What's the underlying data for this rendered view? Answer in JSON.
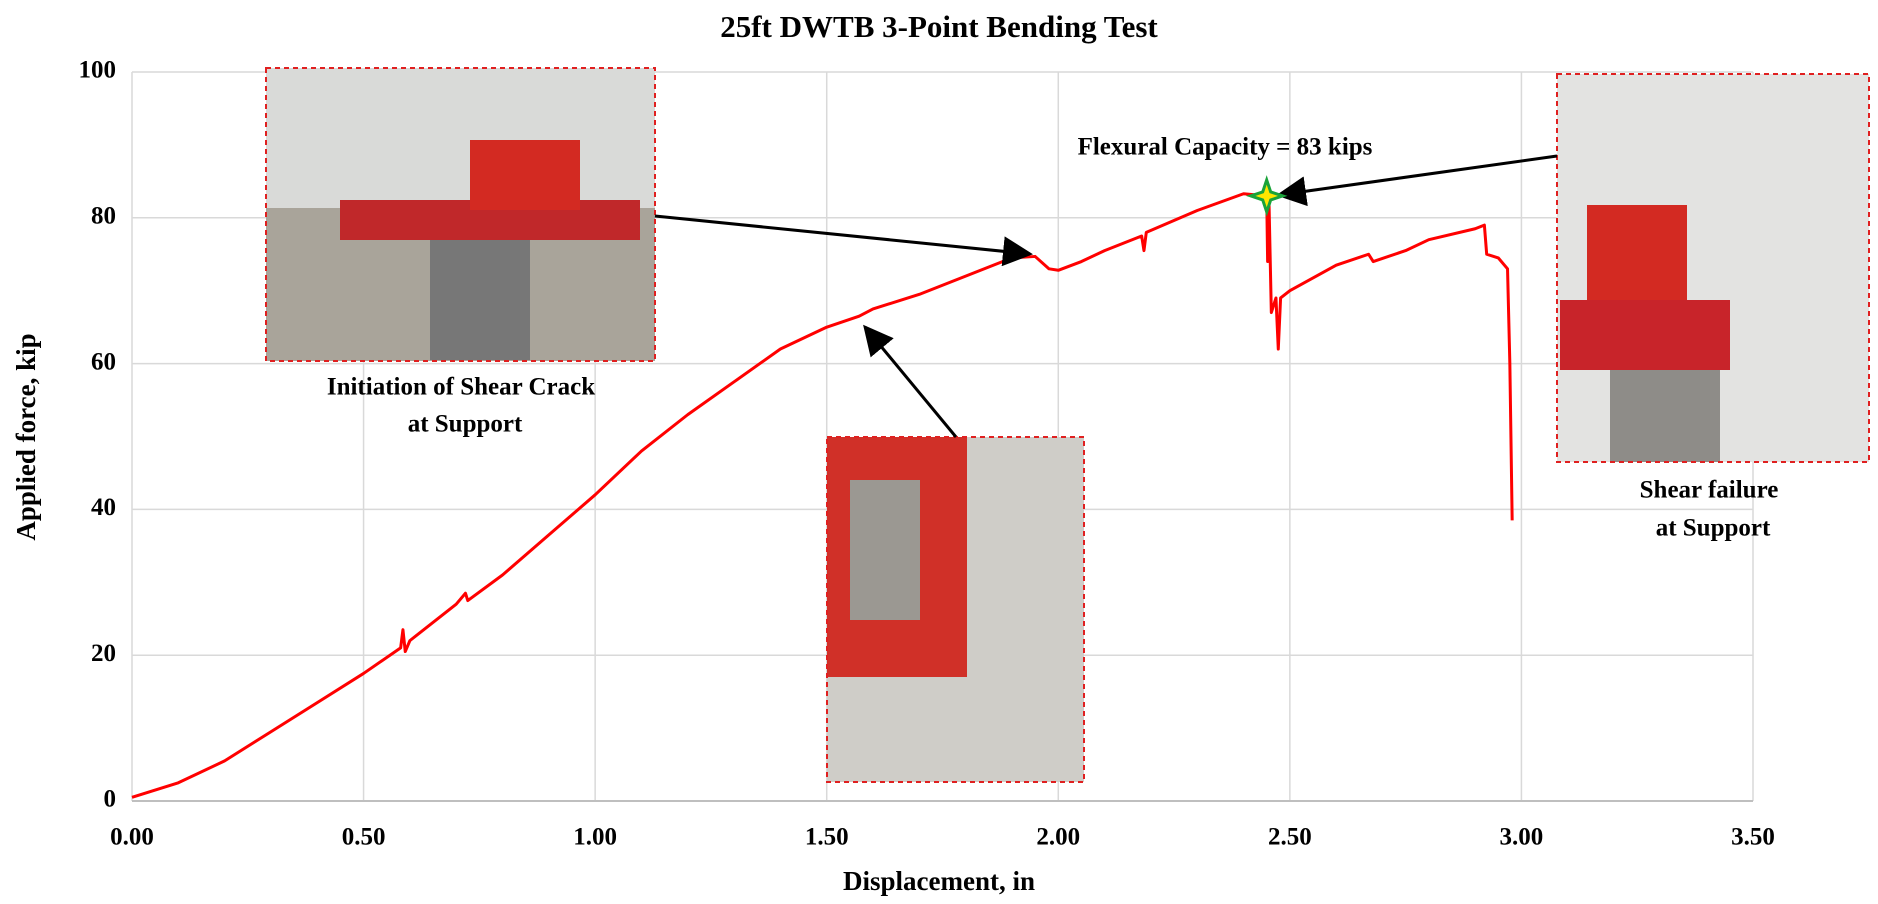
{
  "chart_data": {
    "type": "line",
    "title": "25ft DWTB 3-Point Bending Test",
    "x_label": "Displacement, in",
    "y_label": "Applied force, kip",
    "color": "#ff0000",
    "grid": true,
    "xlim": [
      0,
      3.5
    ],
    "ylim": [
      0,
      100
    ],
    "xticks": [
      {
        "value": 0,
        "label": "0.00"
      },
      {
        "value": 0.5,
        "label": "0.50"
      },
      {
        "value": 1,
        "label": "1.00"
      },
      {
        "value": 1.5,
        "label": "1.50"
      },
      {
        "value": 2,
        "label": "2.00"
      },
      {
        "value": 2.5,
        "label": "2.50"
      },
      {
        "value": 3,
        "label": "3.00"
      },
      {
        "value": 3.5,
        "label": "3.50"
      }
    ],
    "yticks": [
      0,
      20,
      40,
      60,
      80,
      100
    ],
    "x": [
      0,
      0.1,
      0.2,
      0.3,
      0.4,
      0.5,
      0.58,
      0.585,
      0.59,
      0.6,
      0.7,
      0.72,
      0.725,
      0.8,
      0.9,
      1.0,
      1.1,
      1.2,
      1.3,
      1.4,
      1.5,
      1.57,
      1.6,
      1.7,
      1.8,
      1.9,
      1.95,
      1.98,
      2.0,
      2.05,
      2.1,
      2.18,
      2.185,
      2.19,
      2.3,
      2.4,
      2.45,
      2.452,
      2.455,
      2.46,
      2.47,
      2.475,
      2.48,
      2.5,
      2.6,
      2.67,
      2.68,
      2.75,
      2.8,
      2.9,
      2.92,
      2.925,
      2.95,
      2.97,
      2.975,
      2.98
    ],
    "values": [
      0.5,
      2.5,
      5.5,
      9.5,
      13.5,
      17.5,
      21,
      23.5,
      20.5,
      22,
      27,
      28.5,
      27.5,
      31,
      36.5,
      42,
      48,
      53,
      57.5,
      62,
      65,
      66.5,
      67.5,
      69.5,
      72,
      74.5,
      74.7,
      73,
      72.8,
      74,
      75.5,
      77.5,
      75.5,
      78,
      81,
      83.3,
      83,
      74,
      82,
      67,
      69,
      62,
      69,
      70,
      73.5,
      75,
      74,
      75.5,
      77,
      78.5,
      79,
      75,
      74.5,
      73,
      60,
      38.5
    ],
    "peak": {
      "label": "Flexural Capacity = 83 kips",
      "x": 2.45,
      "y": 83
    },
    "annotations": [
      [
        "Initiation of Shear Crack",
        "at Support"
      ],
      [
        "Shear failure",
        "at Support"
      ]
    ]
  }
}
